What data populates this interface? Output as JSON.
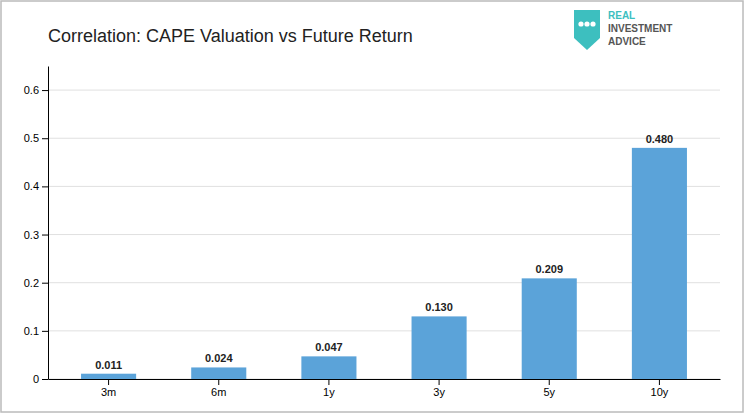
{
  "chart_data": {
    "type": "bar",
    "title": "Correlation: CAPE Valuation vs Future Return",
    "categories": [
      "3m",
      "6m",
      "1y",
      "3y",
      "5y",
      "10y"
    ],
    "values": [
      0.011,
      0.024,
      0.047,
      0.13,
      0.209,
      0.48
    ],
    "value_labels": [
      "0.011",
      "0.024",
      "0.047",
      "0.130",
      "0.209",
      "0.480"
    ],
    "data_labels": true,
    "color": "#5ba3d9",
    "ylim": [
      0,
      0.65
    ],
    "yticks": [
      0,
      0.1,
      0.2,
      0.3,
      0.4,
      0.5,
      0.6
    ],
    "grid": true,
    "annotations": [
      "REAL",
      "INVESTMENT",
      "ADVICE"
    ]
  }
}
